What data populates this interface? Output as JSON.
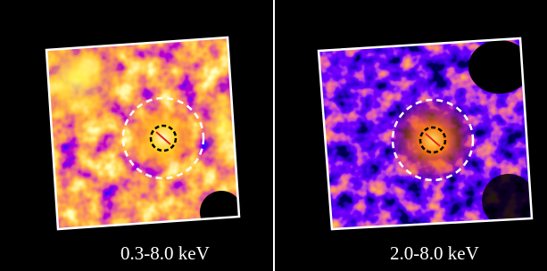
{
  "panels": [
    {
      "label": "0.3-8.0 keV"
    },
    {
      "label": "2.0-8.0 keV"
    }
  ]
}
